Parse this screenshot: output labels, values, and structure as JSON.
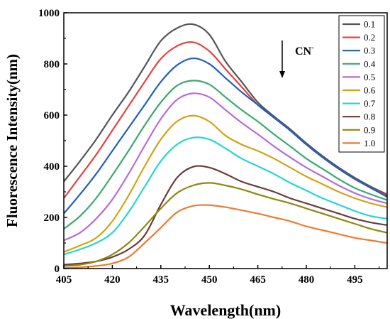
{
  "chart_data": {
    "type": "line",
    "title": "",
    "xlabel": "Wavelength(nm)",
    "ylabel": "Fluorescence Intensity(nm)",
    "xlim": [
      405,
      505
    ],
    "ylim": [
      0,
      1000
    ],
    "xticks": [
      405,
      420,
      435,
      450,
      465,
      480,
      495
    ],
    "yticks": [
      0,
      200,
      400,
      600,
      800,
      1000
    ],
    "legend_position": "top-right",
    "annotation": {
      "text": "CN",
      "superscript": "-",
      "arrow": "down"
    },
    "x": [
      405,
      410,
      415,
      420,
      425,
      430,
      435,
      440,
      445,
      450,
      455,
      460,
      465,
      470,
      475,
      480,
      485,
      490,
      495,
      500,
      505
    ],
    "series": [
      {
        "name": "0.1",
        "color": "#555555",
        "values": [
          340,
          420,
          505,
          600,
          690,
          790,
          890,
          940,
          955,
          915,
          810,
          730,
          650,
          595,
          545,
          490,
          440,
          395,
          355,
          320,
          290
        ]
      },
      {
        "name": "0.2",
        "color": "#e8413c",
        "values": [
          275,
          360,
          445,
          540,
          635,
          730,
          820,
          870,
          885,
          850,
          780,
          710,
          640,
          590,
          540,
          485,
          435,
          390,
          350,
          315,
          285
        ]
      },
      {
        "name": "0.3",
        "color": "#1f5fbf",
        "values": [
          215,
          290,
          370,
          460,
          550,
          640,
          730,
          795,
          822,
          800,
          745,
          690,
          640,
          590,
          540,
          485,
          435,
          390,
          350,
          315,
          280
        ]
      },
      {
        "name": "0.4",
        "color": "#3aaa6e",
        "values": [
          155,
          205,
          275,
          365,
          460,
          560,
          650,
          715,
          735,
          720,
          670,
          620,
          575,
          525,
          478,
          430,
          390,
          350,
          315,
          290,
          268
        ]
      },
      {
        "name": "0.5",
        "color": "#b86cd8",
        "values": [
          110,
          140,
          195,
          270,
          370,
          480,
          585,
          660,
          685,
          670,
          620,
          570,
          525,
          478,
          435,
          395,
          360,
          325,
          295,
          272,
          255
        ]
      },
      {
        "name": "0.6",
        "color": "#d4a215",
        "values": [
          65,
          90,
          120,
          185,
          285,
          400,
          505,
          575,
          598,
          575,
          520,
          485,
          460,
          430,
          395,
          360,
          330,
          300,
          275,
          255,
          240
        ]
      },
      {
        "name": "0.7",
        "color": "#25d5d5",
        "values": [
          55,
          75,
          100,
          140,
          220,
          320,
          420,
          485,
          512,
          505,
          470,
          430,
          400,
          370,
          335,
          305,
          275,
          250,
          225,
          205,
          195
        ]
      },
      {
        "name": "0.8",
        "color": "#6b3a3a",
        "values": [
          15,
          20,
          28,
          45,
          75,
          130,
          250,
          355,
          398,
          395,
          370,
          340,
          320,
          300,
          275,
          255,
          235,
          215,
          195,
          180,
          170
        ]
      },
      {
        "name": "0.9",
        "color": "#8a8a10",
        "values": [
          10,
          15,
          28,
          55,
          100,
          165,
          235,
          295,
          325,
          335,
          325,
          310,
          290,
          272,
          255,
          235,
          215,
          195,
          175,
          155,
          140
        ]
      },
      {
        "name": "1.0",
        "color": "#ee7a30",
        "values": [
          2,
          5,
          10,
          20,
          45,
          100,
          160,
          220,
          245,
          248,
          240,
          228,
          215,
          200,
          185,
          165,
          150,
          135,
          120,
          110,
          100
        ]
      }
    ]
  }
}
